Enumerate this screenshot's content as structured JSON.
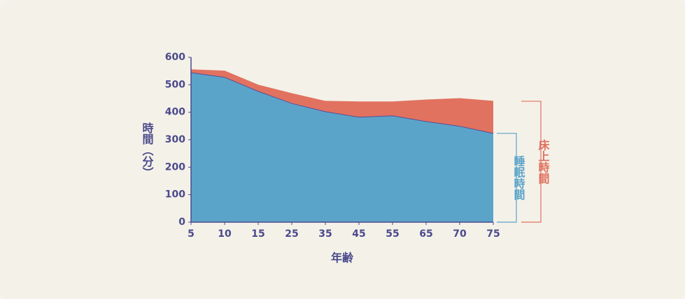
{
  "chart_data": {
    "type": "area",
    "x_label": "年齢",
    "y_label": "時間（分）",
    "categories": [
      "5",
      "10",
      "15",
      "25",
      "35",
      "45",
      "55",
      "65",
      "70",
      "75"
    ],
    "series": [
      {
        "name": "床上時間",
        "color": "#e1725f",
        "values": [
          555,
          550,
          499,
          468,
          440,
          438,
          438,
          445,
          450,
          440
        ]
      },
      {
        "name": "睡眠時間",
        "color": "#5ba4c9",
        "values": [
          544,
          527,
          476,
          432,
          402,
          382,
          387,
          366,
          349,
          323
        ]
      }
    ],
    "ylim": [
      0,
      600
    ],
    "yticks": [
      0,
      100,
      200,
      300,
      400,
      500,
      600
    ]
  }
}
